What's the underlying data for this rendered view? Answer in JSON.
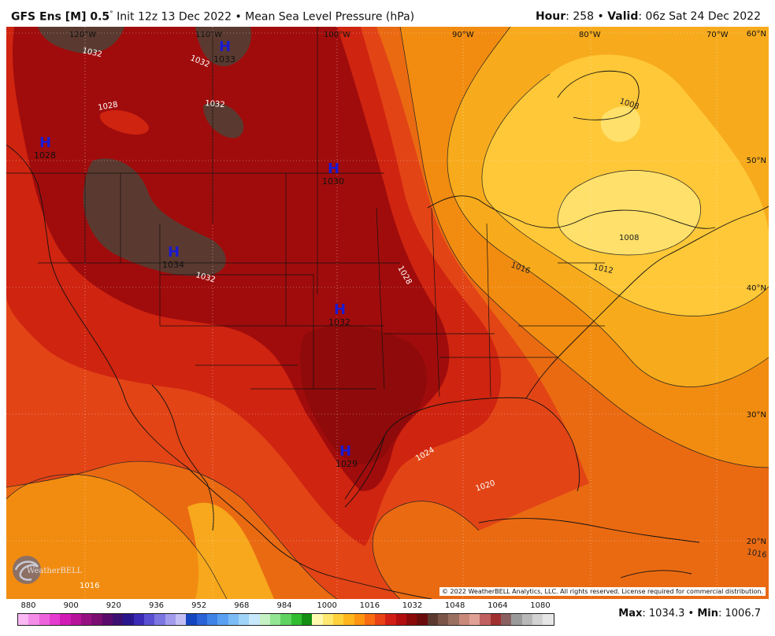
{
  "header": {
    "model": "GFS Ens [M] 0.5",
    "degree": "°",
    "init": "Init 12z 13 Dec 2022",
    "separator": "•",
    "field": "Mean Sea Level Pressure (hPa)",
    "hour_label": "Hour",
    "hour_value": ": 258",
    "valid_label": "Valid",
    "valid_value": ": 06z Sat 24 Dec 2022"
  },
  "map": {
    "lon_labels": [
      "120°W",
      "110°W",
      "100°W",
      "90°W",
      "80°W",
      "70°W"
    ],
    "lat_labels": [
      "60°N",
      "50°N",
      "40°N",
      "30°N",
      "20°N"
    ],
    "highs": [
      {
        "letter": "H",
        "value": "1033"
      },
      {
        "letter": "H",
        "value": "1028"
      },
      {
        "letter": "H",
        "value": "1030"
      },
      {
        "letter": "H",
        "value": "1034"
      },
      {
        "letter": "H",
        "value": "1032"
      },
      {
        "letter": "H",
        "value": "1029"
      }
    ],
    "contour_labels": [
      "1032",
      "1032",
      "1028",
      "1032",
      "1032",
      "1028",
      "1024",
      "1020",
      "1016",
      "1016",
      "1012",
      "1008",
      "1008",
      "1016"
    ],
    "logo_text": "WeatherBELL",
    "copyright": "© 2022 WeatherBELL Analytics, LLC. All rights reserved. License required for commercial distribution."
  },
  "colorbar": {
    "ticks": [
      "880",
      "900",
      "920",
      "936",
      "952",
      "968",
      "984",
      "1000",
      "1016",
      "1032",
      "1048",
      "1064",
      "1080"
    ],
    "colors": [
      "#f9b7f3",
      "#f48de8",
      "#ee63dc",
      "#e53bcf",
      "#d21bb4",
      "#b7129a",
      "#961081",
      "#7a0d6f",
      "#5a0a6a",
      "#3b1070",
      "#2a168c",
      "#3a2ab4",
      "#5a4fd2",
      "#7c76e2",
      "#a29ced",
      "#c3bff4",
      "#1546c2",
      "#2a63d8",
      "#3f82e8",
      "#5aa0f2",
      "#7cbcf6",
      "#a0d4f8",
      "#c6e8fa",
      "#c4f2c4",
      "#92e592",
      "#5fd35f",
      "#2fbd2f",
      "#138f13",
      "#fff9b0",
      "#ffe870",
      "#ffd23c",
      "#ffb51c",
      "#ff9410",
      "#f86b10",
      "#e94214",
      "#d21f15",
      "#b20e0e",
      "#8a0a0a",
      "#6b0c0c",
      "#5c3a30",
      "#7a5548",
      "#9a7060",
      "#c8887a",
      "#e0a095",
      "#c06060",
      "#a03030",
      "#8a6060",
      "#9a9a9a",
      "#b8b8b8",
      "#d2d2d2",
      "#e6e6e6"
    ],
    "pressure_colors": {
      "p1016": "#f28c10",
      "p1020": "#ea6a12",
      "p1024": "#e24416",
      "p1028": "#cf2410",
      "p1032": "#a00c0c",
      "p1034": "#5a3a30",
      "p1012": "#f7ab1c",
      "p1008": "#ffc838",
      "p1004": "#ffe06a",
      "p1000": "#fff09a"
    }
  },
  "stats": {
    "max_label": "Max",
    "max_value": ": 1034.3",
    "sep": "•",
    "min_label": "Min",
    "min_value": ": 1006.7"
  }
}
